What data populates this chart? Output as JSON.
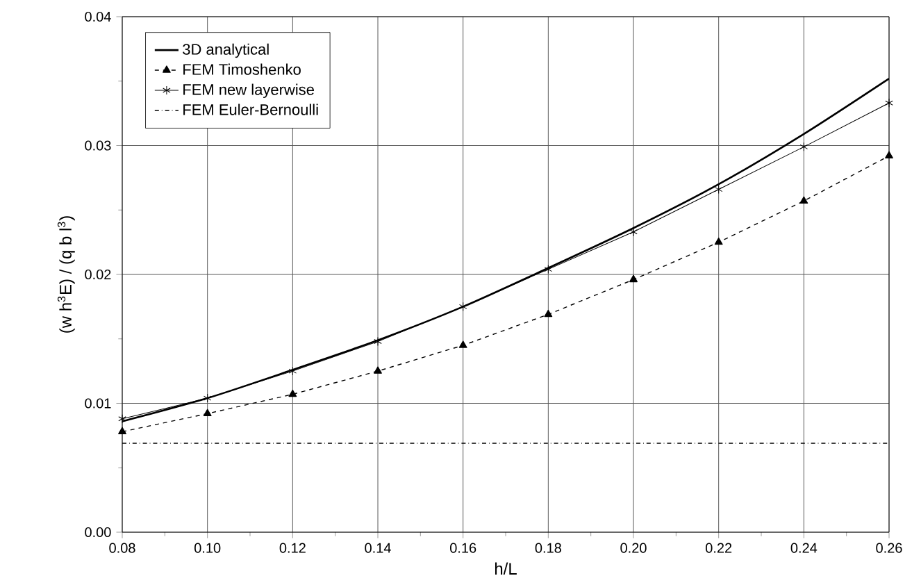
{
  "chart_data": {
    "type": "line",
    "xlabel": "h/L",
    "ylabel": "(w h$^{3}$E) / (q b l$^{3}$)",
    "x": [
      0.08,
      0.1,
      0.12,
      0.14,
      0.16,
      0.18,
      0.2,
      0.22,
      0.24,
      0.26
    ],
    "series": [
      {
        "name": "3D analytical",
        "color": "#000000",
        "marker": "none",
        "line_style": "solid",
        "values": [
          0.0086,
          0.0104,
          0.0126,
          0.0149,
          0.0175,
          0.0205,
          0.0236,
          0.027,
          0.0309,
          0.0352
        ]
      },
      {
        "name": "FEM Timoshenko",
        "color": "#000000",
        "marker": "triangle",
        "line_style": "dashed",
        "values": [
          0.0078,
          0.0092,
          0.0107,
          0.0125,
          0.0145,
          0.0169,
          0.0196,
          0.0225,
          0.0257,
          0.0292
        ]
      },
      {
        "name": "FEM new layerwise",
        "color": "#000000",
        "marker": "cross",
        "line_style": "solid",
        "values": [
          0.0088,
          0.0104,
          0.0125,
          0.0148,
          0.0175,
          0.0204,
          0.0233,
          0.0266,
          0.0299,
          0.0333
        ]
      },
      {
        "name": "FEM Euler-Bernoulli",
        "color": "#000000",
        "marker": "none",
        "line_style": "dashdot",
        "values": [
          0.0069,
          0.0069,
          0.0069,
          0.0069,
          0.0069,
          0.0069,
          0.0069,
          0.0069,
          0.0069,
          0.0069
        ]
      }
    ],
    "xlim": [
      0.08,
      0.26
    ],
    "xticks": [
      {
        "value": 0.08,
        "label": "0.08"
      },
      {
        "value": 0.1,
        "label": "0.10"
      },
      {
        "value": 0.12,
        "label": "0.12"
      },
      {
        "value": 0.14,
        "label": "0.14"
      },
      {
        "value": 0.16,
        "label": "0.16"
      },
      {
        "value": 0.18,
        "label": "0.18"
      },
      {
        "value": 0.2,
        "label": "0.20"
      },
      {
        "value": 0.22,
        "label": "0.22"
      },
      {
        "value": 0.24,
        "label": "0.24"
      },
      {
        "value": 0.26,
        "label": "0.26"
      }
    ],
    "ylim": [
      0,
      0.04
    ],
    "yticks": [
      {
        "value": 0,
        "label": "0.00"
      },
      {
        "value": 0.01,
        "label": "0.01"
      },
      {
        "value": 0.02,
        "label": "0.02"
      },
      {
        "value": 0.03,
        "label": "0.03"
      },
      {
        "value": 0.04,
        "label": "0.04"
      }
    ],
    "grid": true,
    "legend": "top left"
  }
}
